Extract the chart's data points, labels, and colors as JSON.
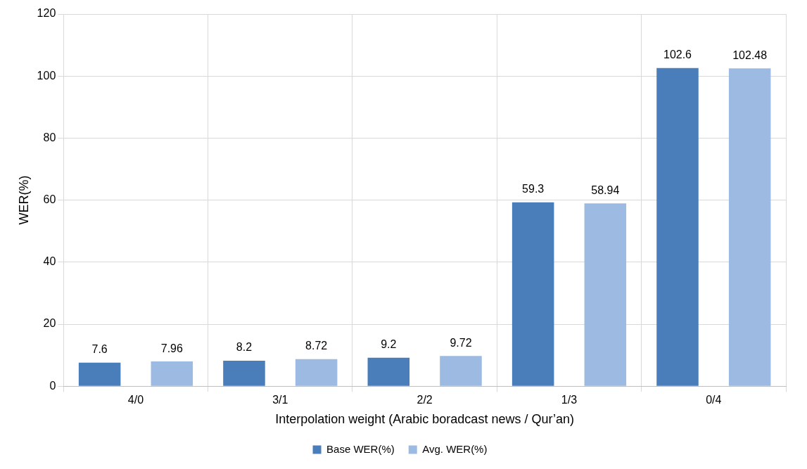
{
  "chart_data": {
    "type": "bar",
    "xlabel": "Interpolation weight (Arabic boradcast news / Qur’an)",
    "ylabel": "WER(%)",
    "categories": [
      "4/0",
      "3/1",
      "2/2",
      "1/3",
      "0/4"
    ],
    "series": [
      {
        "name": "Base WER(%)",
        "color": "#4a7ebb",
        "values": [
          7.6,
          8.2,
          9.2,
          59.3,
          102.6
        ]
      },
      {
        "name": "Avg. WER(%)",
        "color": "#9dbbe2",
        "values": [
          7.96,
          8.72,
          9.72,
          58.94,
          102.48
        ]
      }
    ],
    "ylim": [
      0,
      120
    ],
    "yticks": [
      0,
      20,
      40,
      60,
      80,
      100,
      120
    ],
    "grid": true,
    "legend": "bottom",
    "data_labels": true
  }
}
